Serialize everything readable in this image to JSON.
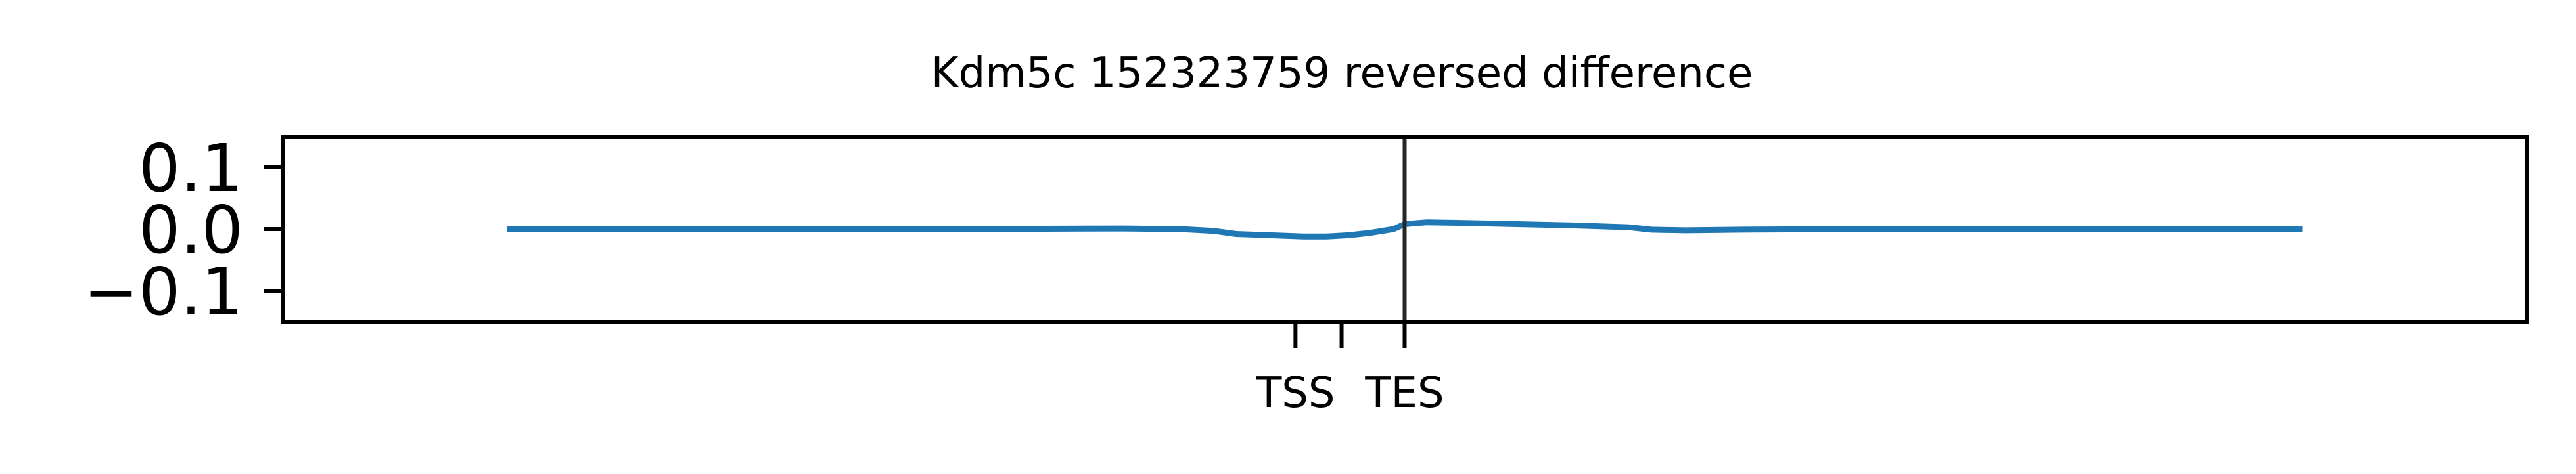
{
  "chart_data": {
    "type": "line",
    "title": "Kdm5c 152323759 reversed difference",
    "xlabel": "",
    "ylabel": "",
    "xlim": [
      -1,
      1
    ],
    "ylim": [
      -0.15,
      0.15
    ],
    "yticks": [
      0.1,
      0.0,
      -0.1
    ],
    "ytick_labels": [
      "0.1",
      "0.0",
      "−0.1"
    ],
    "xticks": [
      {
        "value": -0.0973,
        "label": "TSS"
      },
      {
        "value": -0.0562,
        "label": ""
      },
      {
        "value": 0.0,
        "label": "TES"
      }
    ],
    "vline": 0.0,
    "grid": false,
    "series": [
      {
        "color": "#1f77b4",
        "x": [
          -0.8,
          -0.6,
          -0.4,
          -0.25,
          -0.2,
          -0.17,
          -0.15,
          -0.12,
          -0.09,
          -0.07,
          -0.05,
          -0.03,
          -0.01,
          0.0,
          0.02,
          0.05,
          0.1,
          0.15,
          0.2,
          0.22,
          0.25,
          0.3,
          0.4,
          0.5,
          0.6,
          0.7,
          0.8
        ],
        "y": [
          0.0,
          0.0,
          0.0,
          0.001,
          0.0,
          -0.003,
          -0.008,
          -0.01,
          -0.012,
          -0.012,
          -0.01,
          -0.006,
          0.0,
          0.008,
          0.011,
          0.01,
          0.008,
          0.006,
          0.003,
          -0.001,
          -0.002,
          -0.001,
          0.0,
          0.0,
          0.0,
          0.0,
          0.0
        ]
      }
    ]
  }
}
